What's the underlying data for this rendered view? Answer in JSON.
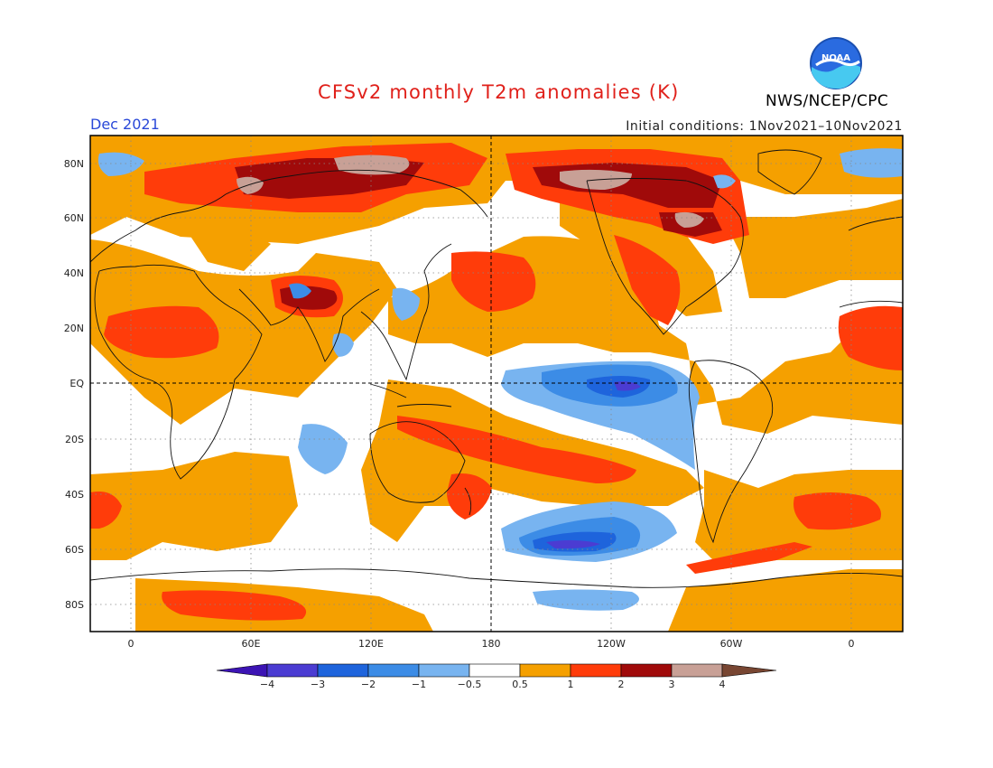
{
  "title": "CFSv2 monthly T2m anomalies (K)",
  "month": "Dec 2021",
  "initial_conditions": "Initial conditions: 1Nov2021–10Nov2021",
  "agency": "NWS/NCEP/CPC",
  "logo_text": "NOAA",
  "lat_labels": [
    "80N",
    "60N",
    "40N",
    "20N",
    "EQ",
    "20S",
    "40S",
    "60S",
    "80S"
  ],
  "lon_labels": [
    "0",
    "60E",
    "120E",
    "180",
    "120W",
    "60W",
    "0"
  ],
  "colorbar": {
    "tick_labels": [
      "−4",
      "−3",
      "−2",
      "−1",
      "−0.5",
      "0.5",
      "1",
      "2",
      "3",
      "4"
    ],
    "colors": [
      "#3c14b4",
      "#4b3cd2",
      "#1e64dc",
      "#3c8ce6",
      "#78b4f0",
      "#ffffff",
      "#f5a000",
      "#ff3c0a",
      "#a00a0a",
      "#c8a096",
      "#784632"
    ]
  },
  "colors": {
    "title": "#e0201a",
    "month": "#2a48d8"
  }
}
